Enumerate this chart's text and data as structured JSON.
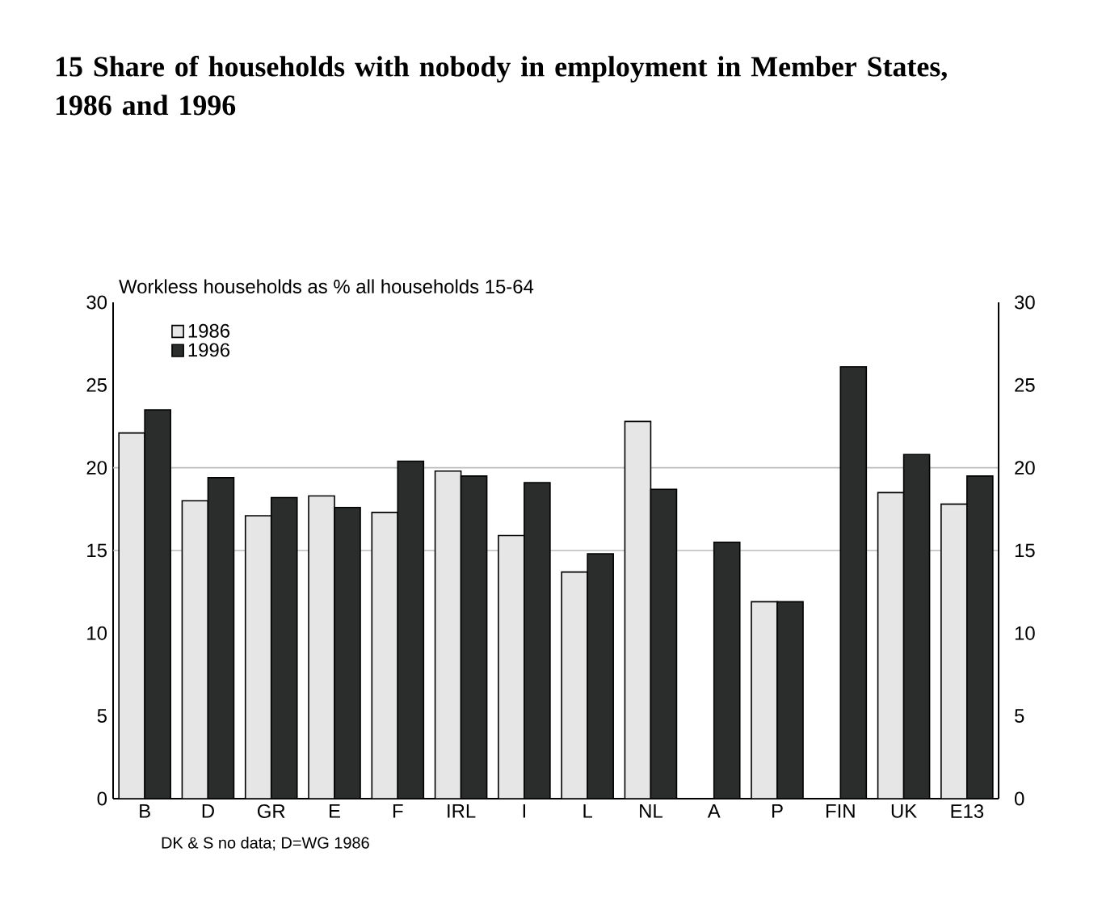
{
  "chart_data": {
    "type": "bar",
    "title": "15 Share of households with nobody in employment in Member States, 1986 and 1996",
    "ylabel": "Workless households as % all households 15-64",
    "categories": [
      "B",
      "D",
      "GR",
      "E",
      "F",
      "IRL",
      "I",
      "L",
      "NL",
      "A",
      "P",
      "FIN",
      "UK",
      "E13"
    ],
    "series": [
      {
        "name": "1986",
        "color": "#e6e6e6",
        "values": [
          22.1,
          18.0,
          17.1,
          18.3,
          17.3,
          19.8,
          15.9,
          13.7,
          22.8,
          null,
          11.9,
          null,
          18.5,
          17.8
        ]
      },
      {
        "name": "1996",
        "color": "#2b2d2d",
        "values": [
          23.5,
          19.4,
          18.2,
          17.6,
          20.4,
          19.5,
          19.1,
          14.8,
          18.7,
          15.5,
          11.9,
          26.1,
          20.8,
          19.5
        ]
      }
    ],
    "ylim": [
      0,
      30
    ],
    "yticks": [
      0,
      5,
      10,
      15,
      20,
      25,
      30
    ],
    "y2lim": [
      0,
      30
    ],
    "y2ticks": [
      0,
      5,
      10,
      15,
      20,
      25,
      30
    ],
    "ref_lines": [
      {
        "axis": "y",
        "value": 15,
        "color": "#bbbbbb"
      },
      {
        "axis": "y",
        "value": 20,
        "color": "#bbbbbb"
      }
    ],
    "legend": "top left",
    "annotations": [
      "DK & S no data; D=WG 1986"
    ]
  }
}
